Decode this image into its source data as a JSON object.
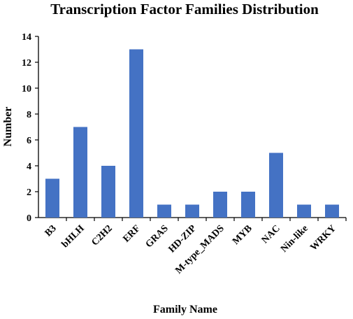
{
  "chart_data": {
    "type": "bar",
    "title": "Transcription Factor Families Distribution",
    "xlabel": "Family Name",
    "ylabel": "Number",
    "categories": [
      "B3",
      "bHLH",
      "C2H2",
      "ERF",
      "GRAS",
      "HD-ZIP",
      "M-type_MADS",
      "MYB",
      "NAC",
      "Nin-like",
      "WRKY"
    ],
    "values": [
      3,
      7,
      4,
      13,
      1,
      1,
      2,
      2,
      5,
      1,
      1
    ],
    "ylim": [
      0,
      14
    ],
    "yticks": [
      "0",
      "2",
      "4",
      "6",
      "8",
      "10",
      "12",
      "14"
    ],
    "grid": false,
    "bar_color": "#4472C4"
  }
}
